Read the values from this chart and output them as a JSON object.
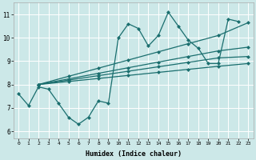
{
  "xlabel": "Humidex (Indice chaleur)",
  "ylabel": "",
  "bg_color": "#cce8e8",
  "line_color": "#1a6e6e",
  "xlim": [
    -0.5,
    23.5
  ],
  "ylim": [
    5.7,
    11.5
  ],
  "xticks": [
    0,
    1,
    2,
    3,
    4,
    5,
    6,
    7,
    8,
    9,
    10,
    11,
    12,
    13,
    14,
    15,
    16,
    17,
    18,
    19,
    20,
    21,
    22,
    23
  ],
  "yticks": [
    6,
    7,
    8,
    9,
    10,
    11
  ],
  "series1_x": [
    0,
    1,
    2,
    3,
    4,
    5,
    6,
    7,
    8,
    9,
    10,
    11,
    12,
    13,
    14,
    15,
    16,
    17,
    18,
    19,
    20,
    21,
    22
  ],
  "series1_y": [
    7.6,
    7.1,
    7.9,
    7.8,
    7.2,
    6.6,
    6.3,
    6.6,
    7.3,
    7.2,
    10.0,
    10.6,
    10.4,
    9.65,
    10.1,
    11.1,
    10.5,
    9.9,
    9.55,
    8.9,
    8.9,
    10.8,
    10.7
  ],
  "line1_x": [
    2,
    5,
    8,
    11,
    14,
    17,
    20,
    23
  ],
  "line1_y": [
    8.0,
    8.35,
    8.7,
    9.05,
    9.4,
    9.75,
    10.1,
    10.65
  ],
  "line2_x": [
    2,
    5,
    8,
    11,
    14,
    17,
    20,
    23
  ],
  "line2_y": [
    8.0,
    8.24,
    8.48,
    8.72,
    8.96,
    9.2,
    9.44,
    9.6
  ],
  "line3_x": [
    2,
    5,
    8,
    11,
    14,
    17,
    20,
    23
  ],
  "line3_y": [
    8.0,
    8.19,
    8.38,
    8.57,
    8.76,
    8.95,
    9.14,
    9.2
  ],
  "line4_x": [
    2,
    5,
    8,
    11,
    14,
    17,
    20,
    23
  ],
  "line4_y": [
    8.0,
    8.13,
    8.26,
    8.39,
    8.52,
    8.65,
    8.78,
    8.9
  ]
}
